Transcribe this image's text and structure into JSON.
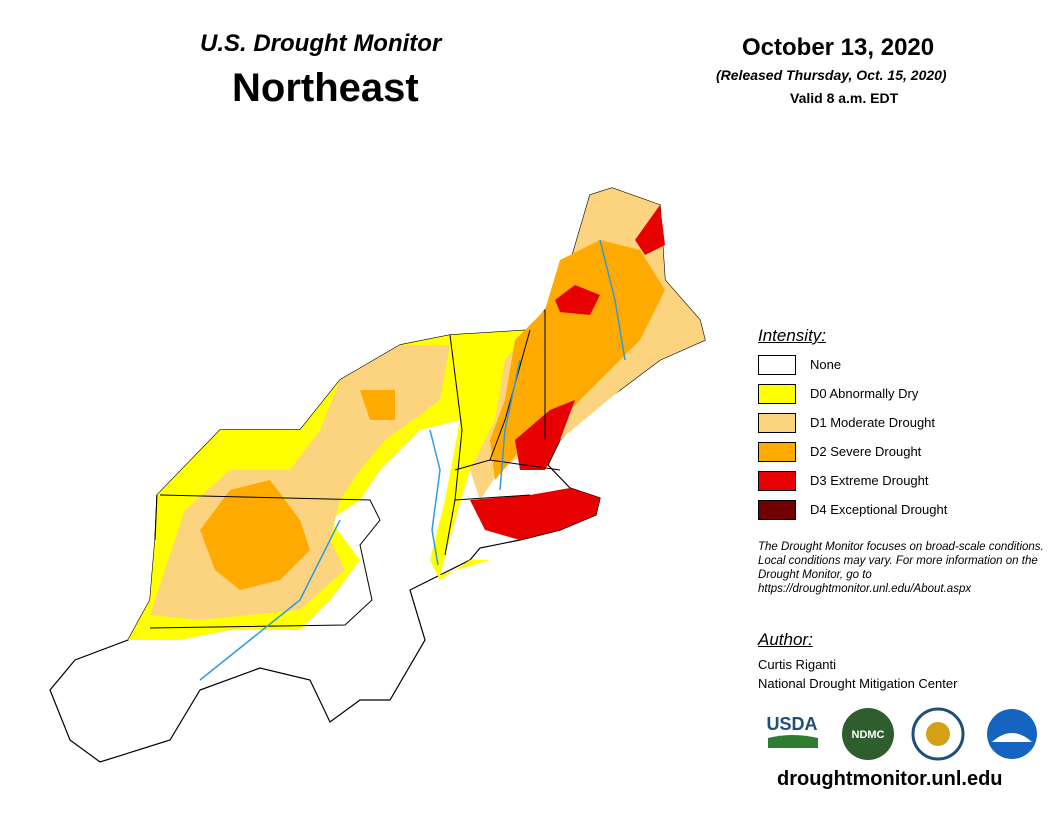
{
  "header": {
    "title": "U.S. Drought Monitor",
    "region": "Northeast",
    "date": "October 13, 2020",
    "released": "(Released Thursday, Oct. 15, 2020)",
    "valid": "Valid 8 a.m. EDT"
  },
  "legend": {
    "title": "Intensity:",
    "items": [
      {
        "label": "None",
        "color": "#ffffff"
      },
      {
        "label": "D0 Abnormally Dry",
        "color": "#ffff00"
      },
      {
        "label": "D1 Moderate Drought",
        "color": "#fcd37f"
      },
      {
        "label": "D2 Severe Drought",
        "color": "#ffaa00"
      },
      {
        "label": "D3 Extreme Drought",
        "color": "#e60000"
      },
      {
        "label": "D4 Exceptional Drought",
        "color": "#730000"
      }
    ]
  },
  "note": "The Drought Monitor focuses on broad-scale conditions. Local conditions may vary. For more information on the Drought Monitor, go to https://droughtmonitor.unl.edu/About.aspx",
  "author": {
    "title": "Author:",
    "name": "Curtis Riganti",
    "org": "National Drought Mitigation Center"
  },
  "logos": [
    "USDA",
    "NDMC"
  ],
  "url": "droughtmonitor.unl.edu"
}
